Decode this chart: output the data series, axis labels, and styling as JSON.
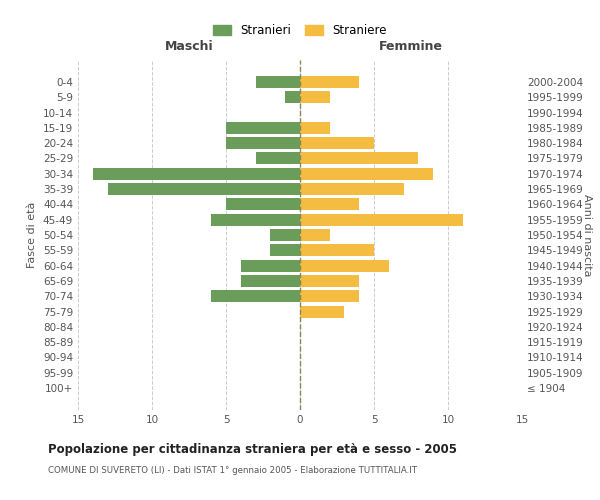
{
  "age_groups": [
    "100+",
    "95-99",
    "90-94",
    "85-89",
    "80-84",
    "75-79",
    "70-74",
    "65-69",
    "60-64",
    "55-59",
    "50-54",
    "45-49",
    "40-44",
    "35-39",
    "30-34",
    "25-29",
    "20-24",
    "15-19",
    "10-14",
    "5-9",
    "0-4"
  ],
  "birth_years": [
    "≤ 1904",
    "1905-1909",
    "1910-1914",
    "1915-1919",
    "1920-1924",
    "1925-1929",
    "1930-1934",
    "1935-1939",
    "1940-1944",
    "1945-1949",
    "1950-1954",
    "1955-1959",
    "1960-1964",
    "1965-1969",
    "1970-1974",
    "1975-1979",
    "1980-1984",
    "1985-1989",
    "1990-1994",
    "1995-1999",
    "2000-2004"
  ],
  "maschi": [
    0,
    0,
    0,
    0,
    0,
    0,
    6,
    4,
    4,
    2,
    2,
    6,
    5,
    13,
    14,
    3,
    5,
    5,
    0,
    1,
    3
  ],
  "femmine": [
    0,
    0,
    0,
    0,
    0,
    3,
    4,
    4,
    6,
    5,
    2,
    11,
    4,
    7,
    9,
    8,
    5,
    2,
    0,
    2,
    4
  ],
  "color_maschi": "#6a9d5a",
  "color_femmine": "#f5bc42",
  "title": "Popolazione per cittadinanza straniera per età e sesso - 2005",
  "subtitle": "COMUNE DI SUVERETO (LI) - Dati ISTAT 1° gennaio 2005 - Elaborazione TUTTITALIA.IT",
  "xlabel_left": "Maschi",
  "xlabel_right": "Femmine",
  "ylabel_left": "Fasce di età",
  "ylabel_right": "Anni di nascita",
  "xlim": 15,
  "legend_stranieri": "Stranieri",
  "legend_straniere": "Straniere",
  "background_color": "#ffffff",
  "grid_color": "#cccccc"
}
